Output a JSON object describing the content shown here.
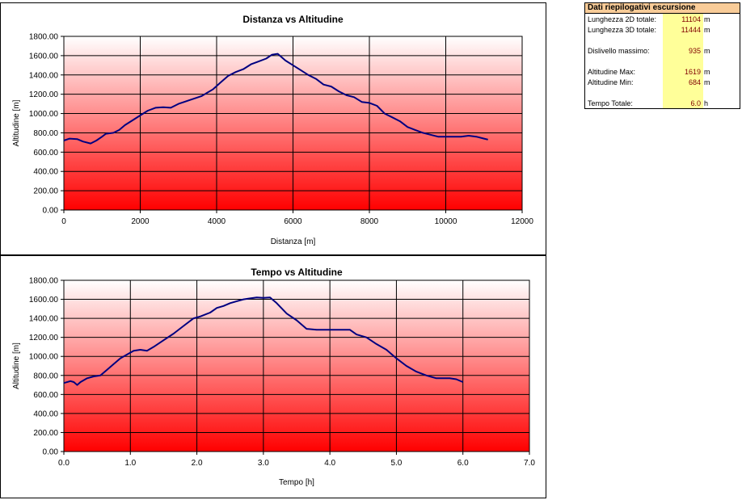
{
  "summary": {
    "title": "Dati riepilogativi escursione",
    "rows": [
      {
        "label": "Lunghezza 2D totale:",
        "value": "11104",
        "unit": "m"
      },
      {
        "label": "Lunghezza 3D totale:",
        "value": "11444",
        "unit": "m"
      },
      {
        "label": "Dislivello massimo:",
        "value": "935",
        "unit": "m"
      },
      {
        "label": "Altitudine Max:",
        "value": "1619",
        "unit": "m"
      },
      {
        "label": "Altitudine Min:",
        "value": "684",
        "unit": "m"
      },
      {
        "label": "Tempo Totale:",
        "value": "6.0",
        "unit": "h"
      }
    ]
  },
  "colors": {
    "line": "#000080",
    "fill_top": "#ffffff",
    "fill_bottom": "#ff0000",
    "grid": "#000000",
    "summary_header": "#f9cc98",
    "summary_values_bg": "#ffff99",
    "summary_values_text": "#800000"
  },
  "chart_data": [
    {
      "type": "line",
      "title": "Distanza vs Altitudine",
      "xlabel": "Distanza [m]",
      "ylabel": "Altitudine [m]",
      "xlim": [
        0,
        12000
      ],
      "ylim": [
        0,
        1800
      ],
      "xticks": [
        0,
        2000,
        4000,
        6000,
        8000,
        10000,
        12000
      ],
      "xtick_labels": [
        "0",
        "2000",
        "4000",
        "6000",
        "8000",
        "10000",
        "12000"
      ],
      "yticks": [
        0,
        200,
        400,
        600,
        800,
        1000,
        1200,
        1400,
        1600,
        1800
      ],
      "ytick_labels": [
        "0.00",
        "200.00",
        "400.00",
        "600.00",
        "800.00",
        "1000.00",
        "1200.00",
        "1400.00",
        "1600.00",
        "1800.00"
      ],
      "grid": true,
      "background": "gradient white to red",
      "x": [
        0,
        150,
        350,
        500,
        700,
        850,
        1000,
        1100,
        1300,
        1450,
        1600,
        1800,
        2000,
        2200,
        2400,
        2600,
        2800,
        3000,
        3300,
        3600,
        3900,
        4100,
        4300,
        4500,
        4700,
        4900,
        5100,
        5300,
        5450,
        5600,
        5800,
        6000,
        6200,
        6400,
        6600,
        6800,
        7000,
        7200,
        7400,
        7600,
        7800,
        8000,
        8200,
        8400,
        8600,
        8800,
        9000,
        9200,
        9400,
        9600,
        9800,
        10000,
        10200,
        10400,
        10600,
        10800,
        11000,
        11104
      ],
      "y": [
        720,
        740,
        735,
        710,
        690,
        720,
        760,
        790,
        800,
        830,
        880,
        930,
        980,
        1030,
        1060,
        1065,
        1060,
        1100,
        1140,
        1180,
        1250,
        1320,
        1390,
        1430,
        1460,
        1510,
        1540,
        1570,
        1610,
        1619,
        1550,
        1500,
        1450,
        1400,
        1360,
        1300,
        1280,
        1230,
        1190,
        1170,
        1120,
        1110,
        1080,
        1000,
        960,
        920,
        860,
        830,
        800,
        780,
        760,
        760,
        760,
        760,
        770,
        760,
        740,
        730
      ],
      "series": [
        {
          "name": ""
        }
      ]
    },
    {
      "type": "line",
      "title": "Tempo vs Altitudine",
      "xlabel": "Tempo [h]",
      "ylabel": "Altitudine [m]",
      "xlim": [
        0,
        7
      ],
      "ylim": [
        0,
        1800
      ],
      "xticks": [
        0,
        1,
        2,
        3,
        4,
        5,
        6,
        7
      ],
      "xtick_labels": [
        "0.0",
        "1.0",
        "2.0",
        "3.0",
        "4.0",
        "5.0",
        "6.0",
        "7.0"
      ],
      "yticks": [
        0,
        200,
        400,
        600,
        800,
        1000,
        1200,
        1400,
        1600,
        1800
      ],
      "ytick_labels": [
        "0.00",
        "200.00",
        "400.00",
        "600.00",
        "800.00",
        "1000.00",
        "1200.00",
        "1400.00",
        "1600.00",
        "1800.00"
      ],
      "grid": true,
      "background": "gradient white to red",
      "x": [
        0,
        0.1,
        0.15,
        0.2,
        0.25,
        0.35,
        0.45,
        0.55,
        0.65,
        0.75,
        0.85,
        0.95,
        1.05,
        1.15,
        1.25,
        1.35,
        1.5,
        1.65,
        1.8,
        1.95,
        2.05,
        2.2,
        2.3,
        2.4,
        2.5,
        2.6,
        2.7,
        2.8,
        2.9,
        3.0,
        3.1,
        3.2,
        3.35,
        3.5,
        3.65,
        3.8,
        4.0,
        4.2,
        4.3,
        4.4,
        4.55,
        4.7,
        4.85,
        5.0,
        5.15,
        5.3,
        5.45,
        5.6,
        5.8,
        5.9,
        6.0
      ],
      "y": [
        720,
        740,
        730,
        700,
        730,
        770,
        790,
        800,
        860,
        920,
        980,
        1020,
        1060,
        1070,
        1060,
        1100,
        1170,
        1240,
        1320,
        1400,
        1420,
        1460,
        1510,
        1530,
        1560,
        1580,
        1600,
        1610,
        1619,
        1615,
        1619,
        1560,
        1450,
        1380,
        1290,
        1280,
        1280,
        1280,
        1280,
        1230,
        1200,
        1130,
        1070,
        980,
        900,
        840,
        800,
        770,
        770,
        760,
        730
      ],
      "series": [
        {
          "name": ""
        }
      ]
    }
  ]
}
